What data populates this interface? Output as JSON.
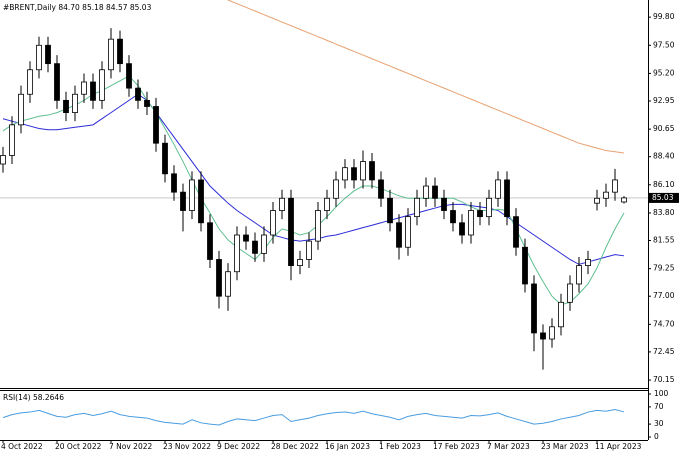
{
  "chart_data": {
    "type": "candlestick",
    "title": "#BRENT,Daily 84.70 85.18 84.57 85.03",
    "categories": [
      "4 Oct 2022",
      null,
      null,
      null,
      null,
      null,
      "20 Oct 2022",
      null,
      null,
      null,
      null,
      null,
      "7 Nov 2022",
      null,
      null,
      null,
      null,
      null,
      "23 Nov 2022",
      null,
      null,
      null,
      null,
      null,
      "9 Dec 2022",
      null,
      null,
      null,
      null,
      null,
      "28 Dec 2022",
      null,
      null,
      null,
      null,
      null,
      "16 Jan 2023",
      null,
      null,
      null,
      null,
      null,
      "1 Feb 2023",
      null,
      null,
      null,
      null,
      null,
      "17 Feb 2023",
      null,
      null,
      null,
      null,
      null,
      "7 Mar 2023",
      null,
      null,
      null,
      null,
      null,
      "23 Mar 2023",
      null,
      null,
      null,
      null,
      null,
      "11 Apr 2023",
      null,
      null,
      null
    ],
    "open": [
      87.8,
      88.5,
      91.0,
      93.5,
      95.5,
      97.5,
      96.0,
      93.0,
      92.0,
      93.5,
      94.5,
      93.0,
      95.5,
      98.0,
      96.0,
      94.0,
      93.0,
      92.5,
      89.5,
      87.0,
      85.5,
      84.0,
      86.5,
      83.0,
      80.0,
      77.0,
      79.0,
      82.0,
      81.5,
      80.5,
      82.0,
      84.0,
      85.0,
      79.5,
      80.0,
      81.5,
      84.0,
      85.0,
      86.5,
      87.5,
      86.5,
      88.0,
      86.5,
      85.0,
      83.0,
      81.0,
      83.5,
      85.0,
      86.0,
      85.0,
      84.0,
      83.0,
      82.0,
      84.0,
      83.5,
      85.0,
      86.5,
      83.5,
      81.0,
      78.0,
      74.0,
      73.5,
      74.5,
      76.5,
      78.0,
      79.5,
      84.6,
      85.0,
      85.5,
      84.7
    ],
    "high": [
      89.2,
      91.7,
      94.2,
      96.2,
      98.2,
      98.2,
      96.7,
      93.7,
      94.2,
      95.2,
      95.2,
      96.2,
      98.9,
      98.7,
      96.7,
      94.7,
      93.7,
      93.2,
      90.2,
      87.7,
      86.2,
      87.2,
      87.2,
      83.7,
      80.7,
      79.7,
      82.7,
      82.7,
      82.2,
      82.7,
      84.7,
      85.7,
      85.7,
      80.7,
      82.2,
      84.7,
      85.7,
      87.2,
      88.2,
      88.2,
      88.9,
      88.7,
      87.2,
      85.7,
      83.7,
      84.2,
      85.7,
      86.7,
      86.7,
      85.7,
      84.7,
      83.7,
      84.7,
      84.7,
      85.7,
      87.2,
      87.2,
      84.2,
      81.7,
      78.7,
      74.7,
      75.2,
      77.2,
      78.7,
      80.2,
      80.7,
      85.7,
      86.2,
      87.4,
      85.18
    ],
    "low": [
      87.1,
      87.8,
      90.3,
      92.8,
      94.8,
      95.3,
      92.3,
      91.3,
      91.3,
      92.8,
      92.3,
      92.3,
      94.8,
      95.3,
      93.3,
      92.3,
      91.8,
      88.8,
      86.3,
      84.8,
      82.3,
      83.3,
      82.3,
      79.3,
      76.0,
      75.8,
      78.3,
      80.8,
      79.8,
      79.8,
      81.3,
      83.3,
      78.3,
      78.8,
      79.3,
      80.8,
      83.3,
      84.3,
      85.8,
      85.8,
      85.8,
      85.8,
      84.3,
      82.3,
      80.0,
      80.3,
      82.8,
      84.3,
      84.3,
      83.3,
      82.3,
      81.3,
      81.3,
      82.8,
      82.8,
      84.3,
      82.8,
      80.3,
      77.3,
      72.5,
      71.0,
      72.8,
      73.8,
      75.8,
      77.3,
      78.8,
      84.0,
      84.3,
      84.8,
      84.57
    ],
    "close": [
      88.5,
      91.0,
      93.5,
      95.5,
      97.5,
      96.0,
      93.0,
      92.0,
      93.5,
      94.5,
      93.0,
      95.5,
      98.0,
      96.0,
      94.0,
      93.0,
      92.5,
      89.5,
      87.0,
      85.5,
      84.0,
      86.5,
      83.0,
      80.0,
      77.0,
      79.0,
      82.0,
      81.5,
      80.5,
      82.0,
      84.0,
      85.0,
      79.5,
      80.0,
      81.5,
      84.0,
      85.0,
      86.5,
      87.5,
      86.5,
      88.0,
      86.5,
      85.0,
      83.0,
      81.0,
      83.5,
      85.0,
      86.0,
      85.0,
      84.0,
      83.0,
      82.0,
      84.0,
      83.5,
      85.0,
      86.5,
      83.5,
      81.0,
      78.0,
      74.0,
      73.5,
      74.5,
      76.5,
      78.0,
      79.5,
      80.0,
      85.0,
      85.5,
      86.5,
      85.03
    ],
    "up_color": "#ffffff",
    "down_color": "#000000",
    "edge_color": "#000000",
    "series": [
      {
        "color": "#2b2bd6",
        "values": [
          91.5,
          91.3,
          91.1,
          90.9,
          90.7,
          90.6,
          90.6,
          90.7,
          90.8,
          90.9,
          91.0,
          91.5,
          92.0,
          92.5,
          93.0,
          93.5,
          93.0,
          92.0,
          91.0,
          90.0,
          89.0,
          88.0,
          87.0,
          86.0,
          85.3,
          84.6,
          84.0,
          83.5,
          83.0,
          82.5,
          82.0,
          81.8,
          81.6,
          81.5,
          81.6,
          81.7,
          81.9,
          82.0,
          82.2,
          82.4,
          82.6,
          82.8,
          83.0,
          83.2,
          83.4,
          83.6,
          83.8,
          84.0,
          84.2,
          84.4,
          84.5,
          84.5,
          84.4,
          84.3,
          84.2,
          84.0,
          83.5,
          83.0,
          82.5,
          82.0,
          81.5,
          81.0,
          80.5,
          80.0,
          79.6,
          79.8,
          80.0,
          80.2,
          80.4,
          80.3
        ]
      },
      {
        "color": "#5fbf8f",
        "values": [
          90.5,
          91.0,
          91.3,
          91.5,
          91.7,
          91.8,
          92.0,
          92.3,
          92.6,
          93.0,
          93.5,
          93.8,
          94.2,
          94.6,
          95.0,
          94.2,
          93.0,
          92.0,
          90.7,
          89.4,
          88.0,
          86.5,
          85.0,
          83.8,
          82.5,
          81.6,
          81.0,
          80.5,
          80.0,
          80.8,
          81.8,
          82.5,
          82.3,
          82.0,
          82.2,
          82.8,
          83.5,
          84.3,
          85.0,
          85.6,
          86.0,
          86.0,
          85.8,
          85.5,
          85.2,
          85.0,
          85.0,
          85.0,
          85.0,
          85.0,
          85.0,
          84.7,
          84.3,
          84.0,
          84.0,
          84.1,
          84.0,
          82.5,
          81.0,
          79.5,
          78.2,
          77.0,
          76.3,
          76.5,
          77.2,
          78.0,
          79.3,
          81.0,
          82.5,
          83.8
        ]
      },
      {
        "color": "#e8a070",
        "values": [
          null,
          null,
          null,
          null,
          null,
          null,
          null,
          null,
          null,
          null,
          null,
          null,
          null,
          null,
          null,
          null,
          null,
          null,
          null,
          null,
          null,
          null,
          null,
          null,
          null,
          101.2,
          100.9,
          100.6,
          100.3,
          100.0,
          99.7,
          99.4,
          99.1,
          98.8,
          98.5,
          98.2,
          97.9,
          97.6,
          97.3,
          97.0,
          96.7,
          96.4,
          96.1,
          95.8,
          95.5,
          95.2,
          94.9,
          94.6,
          94.3,
          94.0,
          93.7,
          93.4,
          93.1,
          92.8,
          92.5,
          92.2,
          91.9,
          91.6,
          91.3,
          91.0,
          90.7,
          90.4,
          90.1,
          89.8,
          89.5,
          89.3,
          89.1,
          88.9,
          88.8,
          88.7
        ]
      }
    ],
    "ylim": [
      69.5,
      101.2
    ],
    "yticks": [
      {
        "value": 99.8,
        "label": "99.80"
      },
      {
        "value": 97.5,
        "label": "97.50"
      },
      {
        "value": 95.2,
        "label": "95.20"
      },
      {
        "value": 92.95,
        "label": "92.95"
      },
      {
        "value": 90.65,
        "label": "90.65"
      },
      {
        "value": 88.4,
        "label": "88.40"
      },
      {
        "value": 86.1,
        "label": "86.10"
      },
      {
        "value": 83.8,
        "label": "83.80"
      },
      {
        "value": 81.55,
        "label": "81.55"
      },
      {
        "value": 79.25,
        "label": "79.25"
      },
      {
        "value": 77.0,
        "label": "77.00"
      },
      {
        "value": 74.7,
        "label": "74.70"
      },
      {
        "value": 72.45,
        "label": "72.45"
      },
      {
        "value": 70.15,
        "label": "70.15"
      }
    ],
    "grid": false,
    "rsi": {
      "label": "RSI(14) 58.2646",
      "color": "#4a9de0",
      "values": [
        45,
        52,
        56,
        58,
        62,
        55,
        48,
        46,
        52,
        55,
        50,
        54,
        60,
        52,
        48,
        46,
        44,
        38,
        34,
        32,
        30,
        40,
        33,
        30,
        28,
        36,
        42,
        40,
        38,
        44,
        50,
        52,
        36,
        40,
        44,
        50,
        54,
        57,
        58,
        55,
        60,
        54,
        50,
        46,
        40,
        48,
        52,
        55,
        50,
        48,
        46,
        44,
        50,
        49,
        52,
        56,
        48,
        42,
        36,
        30,
        32,
        36,
        42,
        46,
        50,
        58,
        62,
        60,
        64,
        58.26
      ],
      "ylim": [
        0,
        100
      ],
      "yticks": [
        100,
        70,
        30,
        0
      ]
    }
  }
}
